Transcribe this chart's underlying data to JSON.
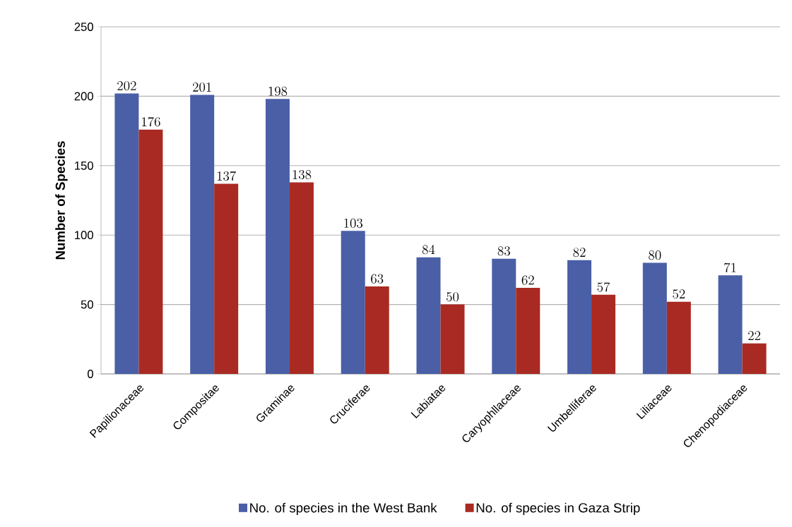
{
  "chart_data": {
    "type": "bar",
    "ylabel": "Number of Species",
    "categories": [
      "Papilionaceae",
      "Compositae",
      "Graminae",
      "Cruciferae",
      "Labiatae",
      "Caryophllaceae",
      "Umbelliferae",
      "Liliaceae",
      "Chenopodiaceae"
    ],
    "series": [
      {
        "name": "No. of species in the West Bank",
        "color": "#4a5fa6",
        "values": [
          202,
          201,
          198,
          103,
          84,
          83,
          82,
          80,
          71
        ]
      },
      {
        "name": "No. of species in Gaza Strip",
        "color": "#a92a22",
        "values": [
          176,
          137,
          138,
          63,
          50,
          62,
          57,
          52,
          22
        ]
      }
    ],
    "ylim": [
      0,
      250
    ],
    "yticks": [
      0,
      50,
      100,
      150,
      200,
      250
    ],
    "grid": "y",
    "legend": "bottom",
    "data_labels": true
  }
}
